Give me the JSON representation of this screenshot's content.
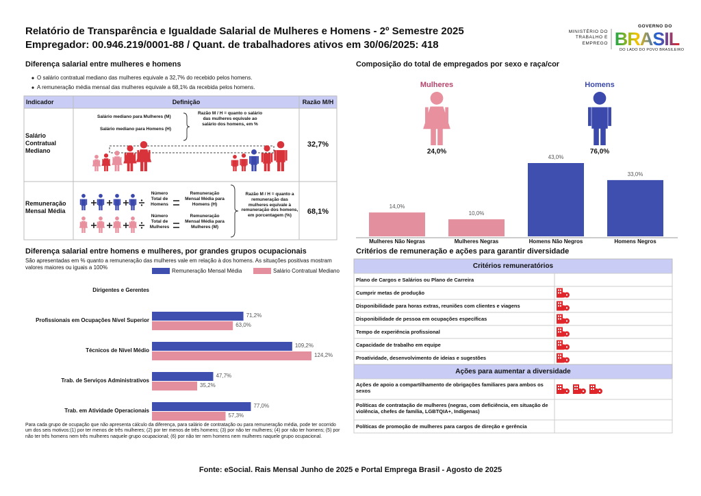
{
  "header": {
    "title": "Relatório de Transparência e Igualdade Salarial de Mulheres e Homens - 2º Semestre 2025",
    "subtitle": "Empregador: 00.946.219/0001-88 / Quant. de trabalhadores ativos em 30/06/2025: 418",
    "ministry": "MINISTÉRIO DO TRABALHO E EMPREGO",
    "gov_top": "GOVERNO DO",
    "gov_name": "BRASIL",
    "gov_tagline": "DO LADO DO POVO BRASILEIRO"
  },
  "salary_gap": {
    "heading": "Diferença salarial entre mulheres e homens",
    "bullets": [
      "O salário contratual mediano das mulheres equivale a 32,7% do recebido pelos homens.",
      "A remuneração média mensal das mulheres equivale a 68,1% da recebida pelos homens."
    ],
    "table": {
      "columns": [
        "Indicador",
        "Definição",
        "Razão M/H"
      ],
      "rows": [
        {
          "indicator": "Salário Contratual Mediano",
          "women_label": "Salário mediano para Mulheres (M)",
          "men_label": "Salário mediano para Homens (H)",
          "explanation": "Razão M / H = quanto o salário das mulheres equivale ao salário dos homens, em %",
          "ratio": "32,7%"
        },
        {
          "indicator": "Remuneração Mensal Média",
          "count_men": "Número Total de Homens",
          "avg_men": "Remuneração Mensal Média para Homens (H)",
          "count_women": "Número Total de Mulheres",
          "avg_women": "Remuneração Mensal Média para Mulheres (M)",
          "explanation": "Razão M / H = quanto a remuneração das mulheres equivale à remuneração dos homens, em porcentagem (%)",
          "ratio": "68,1%"
        }
      ]
    }
  },
  "chart_data": [
    {
      "type": "bar",
      "title": "Composição do total de empregados por sexo e raça/cor",
      "groups": [
        {
          "name": "Mulheres",
          "share": "24,0%",
          "color": "#e8909e",
          "text_color": "#b8436a"
        },
        {
          "name": "Homens",
          "share": "76,0%",
          "color": "#3b49ad",
          "text_color": "#3b49ad"
        }
      ],
      "categories": [
        "Mulheres Não Negras",
        "Mulheres Negras",
        "Homens Não Negros",
        "Homens Negros"
      ],
      "values": [
        14.0,
        10.0,
        43.0,
        33.0
      ],
      "value_labels": [
        "14,0%",
        "10,0%",
        "43,0%",
        "33,0%"
      ],
      "colors": [
        "#e38f9d",
        "#e38f9d",
        "#3f4fb0",
        "#3f4fb0"
      ]
    },
    {
      "type": "hbar",
      "title": "Diferença salarial entre homens e mulheres, por grandes grupos ocupacionais",
      "subtitle": "São apresentadas em % quanto a remuneração das mulheres vale em relação à dos homens. As situações positivas mostram valores maiores ou iguais a 100%",
      "categories": [
        "Dirigentes e Gerentes",
        "Profissionais em Ocupações Nível Superior",
        "Técnicos de Nível Médio",
        "Trab. de Serviços Administrativos",
        "Trab. em Atividade Operacionais"
      ],
      "series": [
        {
          "name": "Remuneração Mensal Média",
          "color": "#3f4fb0",
          "values": [
            null,
            71.2,
            109.2,
            47.7,
            77.0
          ],
          "value_labels": [
            null,
            "71,2%",
            "109,2%",
            "47,7%",
            "77,0%"
          ]
        },
        {
          "name": "Salário Contratual Mediano",
          "color": "#e38f9d",
          "values": [
            null,
            63.0,
            124.2,
            35.2,
            57.3
          ],
          "value_labels": [
            null,
            "63,0%",
            "124,2%",
            "35,2%",
            "57,3%"
          ]
        }
      ],
      "note": "Para cada grupo de ocupação que não apresenta cálculo da diferença, para salário de contratação ou para remuneração média, pode ter ocorrido um dos seis motivos:(1) por ter menos de três mulheres; (2) por ter menos de três homens; (3) por não ter mulheres; (4) por não ter homens; (5) por não ter três homens nem três mulheres naquele grupo ocupacional; (6) por não ter nem homens nem mulheres naquele grupo ocupacional."
    }
  ],
  "criteria": {
    "title": "Critérios de remuneração e ações para garantir diversidade",
    "sections": [
      {
        "title": "Critérios remuneratórios",
        "rows": [
          {
            "label": "Plano de Cargos e Salários ou Plano de Carreira",
            "icons": 0
          },
          {
            "label": "Cumprir metas de produção",
            "icons": 1
          },
          {
            "label": "Disponibilidade para horas extras, reuniões com clientes e viagens",
            "icons": 1
          },
          {
            "label": "Disponibilidade de pessoa em ocupações específicas",
            "icons": 1
          },
          {
            "label": "Tempo de experiência profissional",
            "icons": 1
          },
          {
            "label": "Capacidade de trabalho em equipe",
            "icons": 1
          },
          {
            "label": "Proatividade, desenvolvimento de ideias e sugestões",
            "icons": 1
          }
        ]
      },
      {
        "title": "Ações para aumentar a diversidade",
        "rows": [
          {
            "label": "Ações de apoio a compartilhamento de obrigações familiares para ambos os sexos",
            "icons": 3
          },
          {
            "label": "Políticas de contratação de mulheres (negras, com deficiência, em situação de violência, chefes de família, LGBTQIA+, Indígenas)",
            "icons": 0
          },
          {
            "label": "Políticas de promoção de mulheres para cargos de direção e gerência",
            "icons": 0
          }
        ]
      }
    ]
  },
  "footer": "Fonte: eSocial. Rais Mensal Junho de 2025 e Portal Emprega Brasil - Agosto de 2025"
}
